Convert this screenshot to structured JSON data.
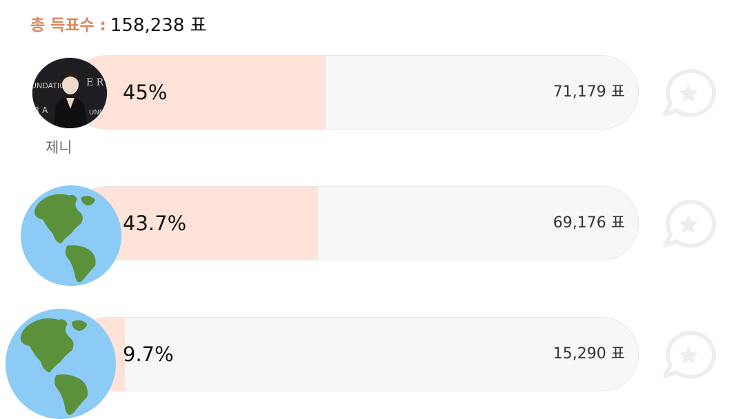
{
  "header": {
    "total_label": "총 득표수 :",
    "total_value": "158,238 표"
  },
  "candidates": [
    {
      "name": "제니",
      "percent_label": "45%",
      "percent": 45,
      "votes": "71,179 표",
      "avatar_icon": "person-photo"
    },
    {
      "name": "",
      "percent_label": "43.7%",
      "percent": 43.7,
      "votes": "69,176 표",
      "avatar_icon": "globe-icon"
    },
    {
      "name": "",
      "percent_label": "9.7%",
      "percent": 9.7,
      "votes": "15,290 표",
      "avatar_icon": "globe-icon"
    }
  ],
  "colors": {
    "accent": "#e0855a",
    "bar_fill": "#ffe3d8",
    "bar_track": "#f7f7f7",
    "globe_ocean": "#8ccbf5",
    "globe_land": "#5c913b"
  },
  "icons": {
    "favorite": "star-chat-bubble-icon"
  }
}
